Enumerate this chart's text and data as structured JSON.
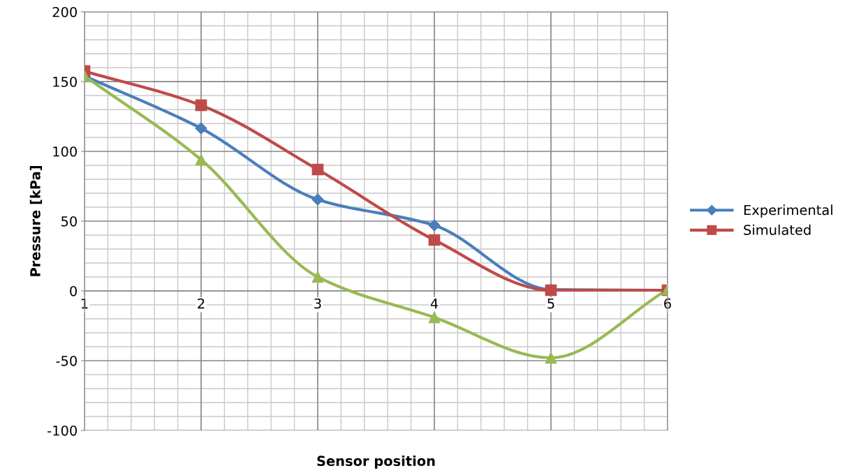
{
  "chart_data": {
    "type": "line",
    "xlabel": "Sensor position",
    "ylabel": "Pressure [kPa]",
    "x": [
      1,
      2,
      3,
      4,
      5,
      6
    ],
    "xlim": [
      1,
      6
    ],
    "xticks": [
      1,
      2,
      3,
      4,
      5,
      6
    ],
    "ylim": [
      -100,
      200
    ],
    "yticks": [
      -100,
      -50,
      0,
      50,
      100,
      150,
      200
    ],
    "grid": true,
    "legend": "right",
    "series": [
      {
        "name": "Experimental",
        "color": "#4a7ebb",
        "marker": "diamond",
        "values": [
          154,
          116.5,
          65.5,
          47,
          1,
          0.5
        ]
      },
      {
        "name": "Simulated",
        "color": "#be4b48",
        "marker": "square",
        "values": [
          157.5,
          133,
          87,
          36.5,
          0.5,
          0.5
        ]
      },
      {
        "color": "#98b954",
        "marker": "triangle",
        "values": [
          154,
          94,
          10,
          -19,
          -48,
          1
        ]
      }
    ]
  }
}
